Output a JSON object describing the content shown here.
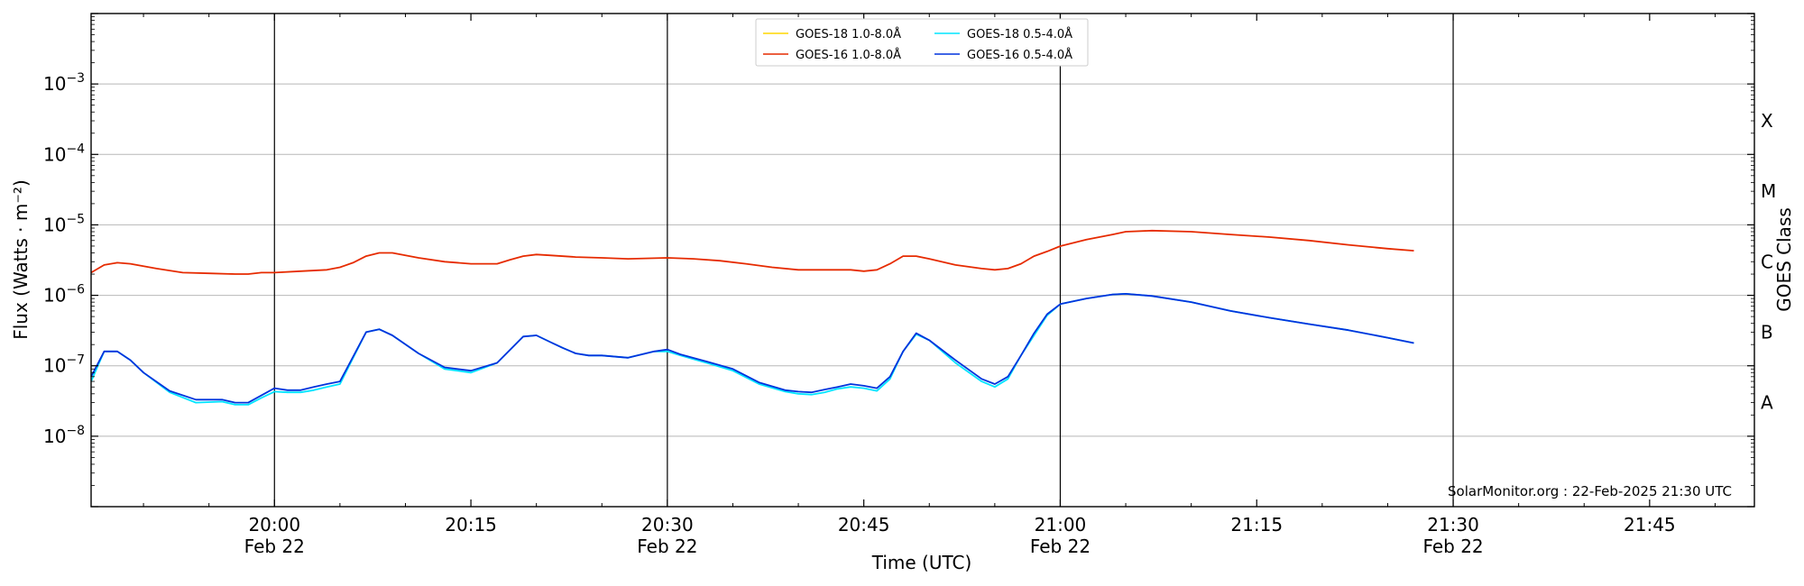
{
  "chart_data": {
    "type": "line",
    "xlabel": "Time (UTC)",
    "ylabel": "Flux (Watts · m⁻²)",
    "y2label": "GOES Class",
    "y_scale": "log",
    "ylim": [
      1e-09,
      0.01
    ],
    "x_range": [
      "19:46",
      "21:53"
    ],
    "grid": "horizontal at decades",
    "legend_placement": "top-center",
    "x_ticks": [
      {
        "t": "20:00",
        "label": "20:00",
        "date": "Feb 22",
        "major": true
      },
      {
        "t": "20:15",
        "label": "20:15",
        "date": "",
        "major": false
      },
      {
        "t": "20:30",
        "label": "20:30",
        "date": "Feb 22",
        "major": true
      },
      {
        "t": "20:45",
        "label": "20:45",
        "date": "",
        "major": false
      },
      {
        "t": "21:00",
        "label": "21:00",
        "date": "Feb 22",
        "major": true
      },
      {
        "t": "21:15",
        "label": "21:15",
        "date": "",
        "major": false
      },
      {
        "t": "21:30",
        "label": "21:30",
        "date": "Feb 22",
        "major": true
      },
      {
        "t": "21:45",
        "label": "21:45",
        "date": "",
        "major": false
      }
    ],
    "y_ticks": [
      {
        "exp": -3,
        "label": "10",
        "sup": "−3"
      },
      {
        "exp": -4,
        "label": "10",
        "sup": "−4"
      },
      {
        "exp": -5,
        "label": "10",
        "sup": "−5"
      },
      {
        "exp": -6,
        "label": "10",
        "sup": "−6"
      },
      {
        "exp": -7,
        "label": "10",
        "sup": "−7"
      },
      {
        "exp": -8,
        "label": "10",
        "sup": "−8"
      }
    ],
    "goes_classes": [
      {
        "label": "X",
        "flux": 0.0003
      },
      {
        "label": "M",
        "flux": 3e-05
      },
      {
        "label": "C",
        "flux": 3e-06
      },
      {
        "label": "B",
        "flux": 3e-07
      },
      {
        "label": "A",
        "flux": 3e-08
      }
    ],
    "series": [
      {
        "name": "GOES-18 1.0-8.0Å",
        "color": "#ffd700",
        "x": [],
        "values": []
      },
      {
        "name": "GOES-18 0.5-4.0Å",
        "color": "#00e5ff",
        "x": [
          "19:46",
          "19:47",
          "19:48",
          "19:49",
          "19:50",
          "19:52",
          "19:54",
          "19:56",
          "19:57",
          "19:58",
          "19:59",
          "20:00",
          "20:01",
          "20:02",
          "20:03",
          "20:04",
          "20:05",
          "20:07",
          "20:08",
          "20:09",
          "20:11",
          "20:13",
          "20:15",
          "20:17",
          "20:19",
          "20:20",
          "20:21",
          "20:22",
          "20:23",
          "20:24",
          "20:25",
          "20:27",
          "20:29",
          "20:30",
          "20:31",
          "20:33",
          "20:35",
          "20:37",
          "20:39",
          "20:40",
          "20:41",
          "20:42",
          "20:43",
          "20:44",
          "20:45",
          "20:46",
          "20:47",
          "20:48",
          "20:49",
          "20:50",
          "20:52",
          "20:54",
          "20:55",
          "20:56",
          "20:57",
          "20:58",
          "20:59",
          "21:00",
          "21:02",
          "21:04",
          "21:05",
          "21:07",
          "21:10",
          "21:13",
          "21:16",
          "21:19",
          "21:22",
          "21:25",
          "21:27"
        ],
        "values": [
          6e-08,
          1.6e-07,
          1.6e-07,
          1.2e-07,
          8e-08,
          4.2e-08,
          3e-08,
          3.1e-08,
          2.8e-08,
          2.8e-08,
          3.5e-08,
          4.3e-08,
          4.2e-08,
          4.2e-08,
          4.5e-08,
          5e-08,
          5.5e-08,
          3e-07,
          3.3e-07,
          2.7e-07,
          1.5e-07,
          9e-08,
          8e-08,
          1.1e-07,
          2.6e-07,
          2.7e-07,
          2.2e-07,
          1.8e-07,
          1.5e-07,
          1.4e-07,
          1.4e-07,
          1.3e-07,
          1.6e-07,
          1.6e-07,
          1.4e-07,
          1.1e-07,
          8.5e-08,
          5.5e-08,
          4.3e-08,
          4e-08,
          3.9e-08,
          4.2e-08,
          4.7e-08,
          5e-08,
          4.8e-08,
          4.4e-08,
          6.5e-08,
          1.6e-07,
          2.8e-07,
          2.3e-07,
          1.1e-07,
          6e-08,
          5e-08,
          6.5e-08,
          1.4e-07,
          2.7e-07,
          5.2e-07,
          7.5e-07,
          9e-07,
          1.03e-06,
          1.05e-06,
          9.8e-07,
          8e-07,
          6e-07,
          4.8e-07,
          3.9e-07,
          3.2e-07,
          2.5e-07,
          2.1e-07
        ]
      },
      {
        "name": "GOES-16 1.0-8.0Å",
        "color": "#e62b00",
        "x": [
          "19:46",
          "19:47",
          "19:48",
          "19:49",
          "19:51",
          "19:53",
          "19:55",
          "19:57",
          "19:58",
          "19:59",
          "20:00",
          "20:02",
          "20:04",
          "20:05",
          "20:06",
          "20:07",
          "20:08",
          "20:09",
          "20:11",
          "20:13",
          "20:15",
          "20:17",
          "20:18",
          "20:19",
          "20:20",
          "20:21",
          "20:23",
          "20:25",
          "20:27",
          "20:30",
          "20:32",
          "20:34",
          "20:36",
          "20:38",
          "20:40",
          "20:42",
          "20:44",
          "20:45",
          "20:46",
          "20:47",
          "20:48",
          "20:49",
          "20:50",
          "20:52",
          "20:54",
          "20:55",
          "20:56",
          "20:57",
          "20:58",
          "20:59",
          "21:00",
          "21:02",
          "21:04",
          "21:05",
          "21:07",
          "21:10",
          "21:13",
          "21:16",
          "21:19",
          "21:22",
          "21:25",
          "21:27"
        ],
        "values": [
          2.1e-06,
          2.7e-06,
          2.9e-06,
          2.8e-06,
          2.4e-06,
          2.1e-06,
          2.05e-06,
          2e-06,
          2e-06,
          2.1e-06,
          2.1e-06,
          2.2e-06,
          2.3e-06,
          2.5e-06,
          2.9e-06,
          3.6e-06,
          4e-06,
          4e-06,
          3.4e-06,
          3e-06,
          2.8e-06,
          2.8e-06,
          3.2e-06,
          3.6e-06,
          3.8e-06,
          3.7e-06,
          3.5e-06,
          3.4e-06,
          3.3e-06,
          3.4e-06,
          3.3e-06,
          3.1e-06,
          2.8e-06,
          2.5e-06,
          2.3e-06,
          2.3e-06,
          2.3e-06,
          2.2e-06,
          2.3e-06,
          2.8e-06,
          3.6e-06,
          3.6e-06,
          3.3e-06,
          2.7e-06,
          2.4e-06,
          2.3e-06,
          2.4e-06,
          2.8e-06,
          3.6e-06,
          4.2e-06,
          5e-06,
          6.2e-06,
          7.3e-06,
          8e-06,
          8.3e-06,
          8e-06,
          7.3e-06,
          6.7e-06,
          6e-06,
          5.2e-06,
          4.6e-06,
          4.3e-06
        ]
      },
      {
        "name": "GOES-16 0.5-4.0Å",
        "color": "#0033dd",
        "x": [
          "19:46",
          "19:47",
          "19:48",
          "19:49",
          "19:50",
          "19:52",
          "19:54",
          "19:56",
          "19:57",
          "19:58",
          "19:59",
          "20:00",
          "20:01",
          "20:02",
          "20:03",
          "20:04",
          "20:05",
          "20:07",
          "20:08",
          "20:09",
          "20:11",
          "20:13",
          "20:15",
          "20:17",
          "20:19",
          "20:20",
          "20:21",
          "20:22",
          "20:23",
          "20:24",
          "20:25",
          "20:27",
          "20:29",
          "20:30",
          "20:31",
          "20:33",
          "20:35",
          "20:37",
          "20:39",
          "20:40",
          "20:41",
          "20:42",
          "20:43",
          "20:44",
          "20:45",
          "20:46",
          "20:47",
          "20:48",
          "20:49",
          "20:50",
          "20:52",
          "20:54",
          "20:55",
          "20:56",
          "20:57",
          "20:58",
          "20:59",
          "21:00",
          "21:02",
          "21:04",
          "21:05",
          "21:07",
          "21:10",
          "21:13",
          "21:16",
          "21:19",
          "21:22",
          "21:25",
          "21:27"
        ],
        "values": [
          7e-08,
          1.6e-07,
          1.6e-07,
          1.2e-07,
          8e-08,
          4.4e-08,
          3.3e-08,
          3.3e-08,
          3e-08,
          3e-08,
          3.8e-08,
          4.8e-08,
          4.5e-08,
          4.5e-08,
          5e-08,
          5.5e-08,
          6e-08,
          3e-07,
          3.3e-07,
          2.7e-07,
          1.5e-07,
          9.5e-08,
          8.5e-08,
          1.1e-07,
          2.6e-07,
          2.7e-07,
          2.2e-07,
          1.8e-07,
          1.5e-07,
          1.4e-07,
          1.4e-07,
          1.3e-07,
          1.6e-07,
          1.7e-07,
          1.45e-07,
          1.15e-07,
          9e-08,
          5.8e-08,
          4.5e-08,
          4.3e-08,
          4.2e-08,
          4.6e-08,
          5e-08,
          5.5e-08,
          5.2e-08,
          4.8e-08,
          7e-08,
          1.6e-07,
          2.9e-07,
          2.3e-07,
          1.2e-07,
          6.5e-08,
          5.5e-08,
          7e-08,
          1.4e-07,
          2.9e-07,
          5.4e-07,
          7.5e-07,
          9e-07,
          1.03e-06,
          1.05e-06,
          9.8e-07,
          8e-07,
          6e-07,
          4.8e-07,
          3.9e-07,
          3.2e-07,
          2.5e-07,
          2.1e-07
        ]
      }
    ]
  },
  "credit": "SolarMonitor.org : 22-Feb-2025 21:30 UTC"
}
